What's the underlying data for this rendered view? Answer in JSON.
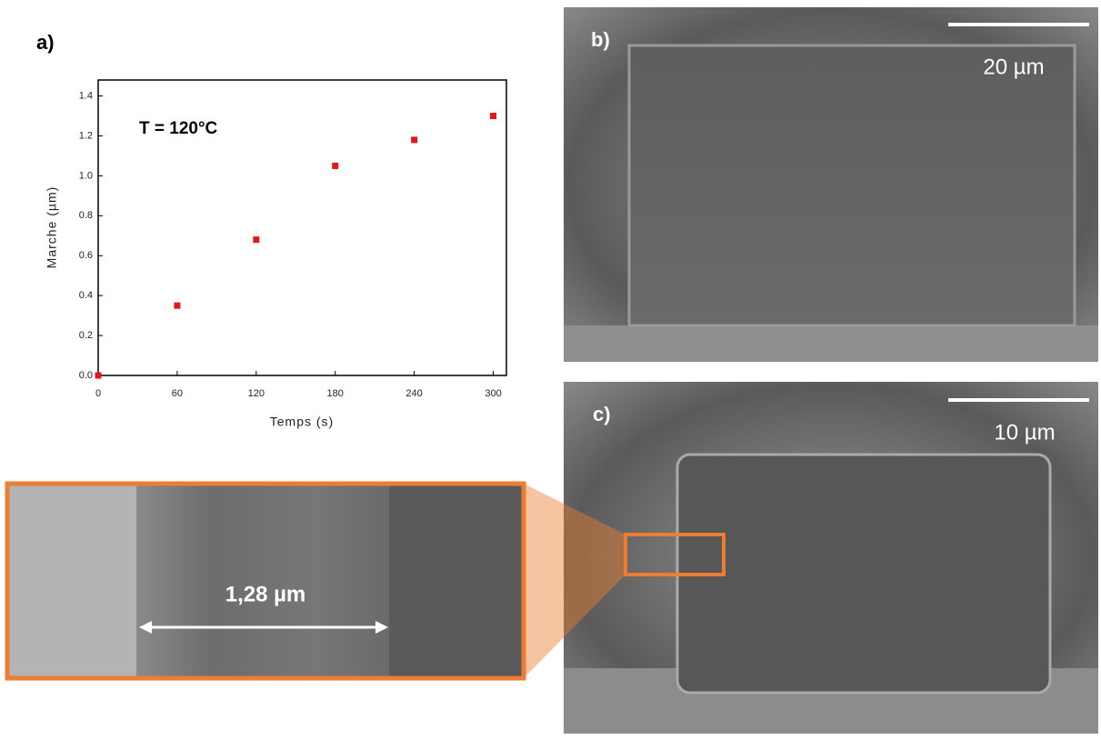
{
  "chart_data": {
    "type": "scatter",
    "annotation": "T = 120°C",
    "x_label": "Temps (s)",
    "y_label": "Marche (µm)",
    "series": [
      {
        "color": "#e8141c",
        "x": [
          0,
          60,
          120,
          180,
          240,
          300
        ],
        "values": [
          0,
          0.35,
          0.68,
          1.05,
          1.18,
          1.3
        ]
      }
    ],
    "xlim": [
      0,
      310
    ],
    "ylim": [
      0,
      1.48
    ],
    "xticks": [
      0,
      60,
      120,
      180,
      240,
      300
    ],
    "yticks": [
      {
        "value": 0,
        "label": "0.0"
      },
      0.2,
      0.4,
      0.6,
      0.8,
      {
        "value": 1,
        "label": "1.0"
      },
      1.2,
      1.4
    ]
  },
  "figure": {
    "panel_a": "a)",
    "panel_b": "b)",
    "panel_c": "c)",
    "scale_b": "20 µm",
    "scale_c": "10 µm",
    "measurement": "1,28 µm"
  }
}
